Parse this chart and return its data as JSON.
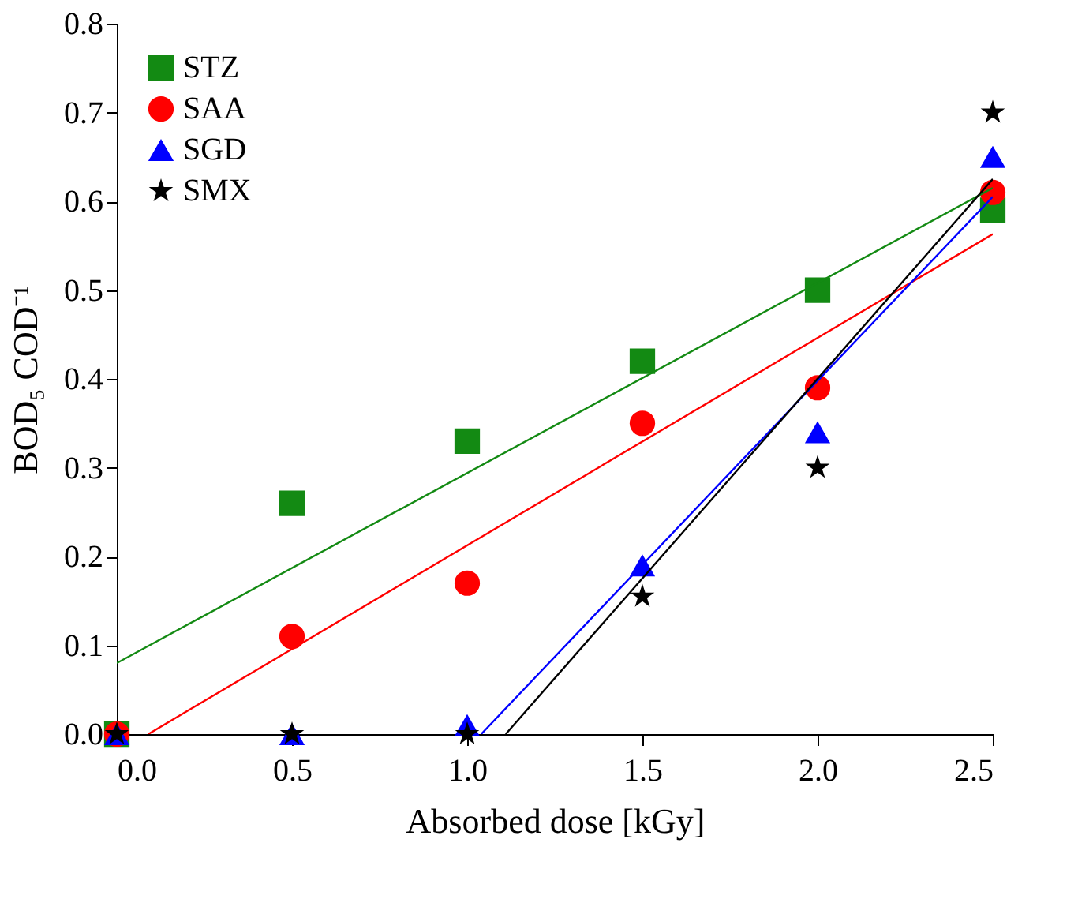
{
  "chart_data": {
    "type": "scatter",
    "xlabel": "Absorbed dose [kGy]",
    "ylabel": "BOD₅ COD⁻¹",
    "x": [
      0,
      0.5,
      1.0,
      1.5,
      2.0,
      2.5
    ],
    "series": [
      {
        "name": "STZ",
        "color": "#138a13",
        "marker": "square",
        "values": [
          0,
          0.26,
          0.33,
          0.42,
          0.5,
          0.59
        ]
      },
      {
        "name": "SAA",
        "color": "#ff0000",
        "marker": "circle",
        "values": [
          0,
          0.11,
          0.17,
          0.35,
          0.39,
          0.61
        ]
      },
      {
        "name": "SGD",
        "color": "#0000ff",
        "marker": "triangle",
        "values": [
          0,
          0,
          0.01,
          0.19,
          0.34,
          0.65
        ]
      },
      {
        "name": "SMX",
        "color": "#000000",
        "marker": "star",
        "values": [
          0,
          0,
          0,
          0.155,
          0.3,
          0.7
        ]
      },
      {
        "type": "line",
        "color": "#138a13",
        "x": [
          0,
          2.5
        ],
        "values": [
          0.08,
          0.615
        ]
      },
      {
        "type": "line",
        "color": "#ff0000",
        "x": [
          0.09,
          2.5
        ],
        "values": [
          0,
          0.563
        ]
      },
      {
        "type": "line",
        "color": "#0000ff",
        "x": [
          1.04,
          2.5
        ],
        "values": [
          0,
          0.605
        ]
      },
      {
        "type": "line",
        "color": "#000000",
        "x": [
          1.11,
          2.5
        ],
        "values": [
          0,
          0.625
        ]
      }
    ],
    "xlim": [
      0,
      2.5
    ],
    "xticks": [
      {
        "value": 0,
        "label": "0.0"
      },
      0.5,
      {
        "value": 1,
        "label": "1.0"
      },
      1.5,
      {
        "value": 2,
        "label": "2.0"
      },
      2.5
    ],
    "ylim": [
      0,
      0.8
    ],
    "yticks": [
      {
        "value": 0,
        "label": "0.0"
      },
      0.1,
      0.2,
      0.3,
      0.4,
      0.5,
      0.6,
      0.7,
      0.8
    ],
    "grid": false,
    "legend": "top left"
  }
}
